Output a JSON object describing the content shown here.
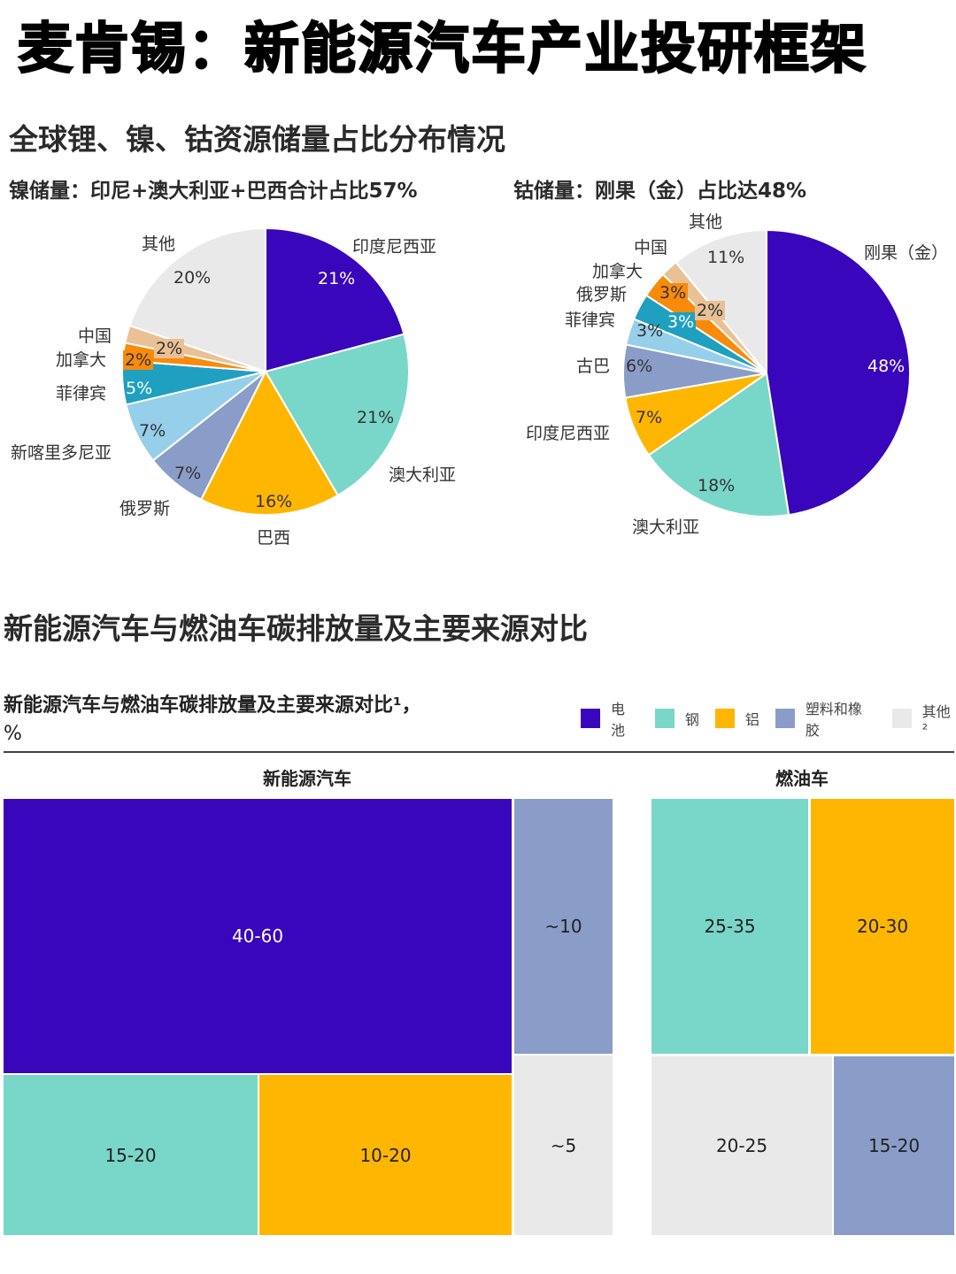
{
  "header": {
    "title": "麦肯锡：新能源汽车产业投研框架"
  },
  "section1": {
    "title": "全球锂、镍、钴资源储量占比分布情况",
    "nickel_subtitle": "镍储量：印尼+澳大利亚+巴西合计占比57%",
    "cobalt_subtitle": "钴储量：刚果（金）占比达48%"
  },
  "section2": {
    "title": "新能源汽车与燃油车碳排放量及主要来源对比",
    "chart_title_line1": "新能源汽车与燃油车碳排放量及主要来源对比¹，",
    "chart_title_line2": "%",
    "legend": [
      {
        "label": "电池",
        "color": "#3a06bb"
      },
      {
        "label": "钢",
        "color": "#79d7c9"
      },
      {
        "label": "铝",
        "color": "#ffb600"
      },
      {
        "label": "塑料和橡胶",
        "color": "#8a9dc8"
      },
      {
        "label": "其他²",
        "color": "#e9e9e9"
      }
    ],
    "ev_label": "新能源汽车",
    "ice_label": "燃油车"
  },
  "chart_data": [
    {
      "type": "pie",
      "title": "镍储量：印尼+澳大利亚+巴西合计占比57%",
      "unit": "%",
      "start": "12 o'clock, clockwise",
      "slices": [
        {
          "label": "印度尼西亚",
          "value": 21,
          "display": "21%",
          "color": "#3a06bb"
        },
        {
          "label": "澳大利亚",
          "value": 21,
          "display": "21%",
          "color": "#79d7c9"
        },
        {
          "label": "巴西",
          "value": 16,
          "display": "16%",
          "color": "#ffb600"
        },
        {
          "label": "俄罗斯",
          "value": 7,
          "display": "7%",
          "color": "#8a9dc8"
        },
        {
          "label": "新喀里多尼亚",
          "value": 7,
          "display": "7%",
          "color": "#96cfea"
        },
        {
          "label": "菲律宾",
          "value": 5,
          "display": "5%",
          "color": "#1fa0c0"
        },
        {
          "label": "加拿大",
          "value": 2,
          "display": "2%",
          "color": "#f98a0a"
        },
        {
          "label": "中国",
          "value": 2,
          "display": "2%",
          "color": "#e9c195"
        },
        {
          "label": "其他",
          "value": 20,
          "display": "20%",
          "color": "#e9e9e9"
        }
      ]
    },
    {
      "type": "pie",
      "title": "钴储量：刚果（金）占比达48%",
      "unit": "%",
      "start": "12 o'clock, clockwise",
      "slices": [
        {
          "label": "刚果（金）",
          "value": 48,
          "display": "48%",
          "color": "#3a06bb"
        },
        {
          "label": "澳大利亚",
          "value": 18,
          "display": "18%",
          "color": "#79d7c9"
        },
        {
          "label": "印度尼西亚",
          "value": 7,
          "display": "7%",
          "color": "#ffb600"
        },
        {
          "label": "古巴",
          "value": 6,
          "display": "6%",
          "color": "#8a9dc8"
        },
        {
          "label": "菲律宾",
          "value": 3,
          "display": "3%",
          "color": "#96cfea"
        },
        {
          "label": "俄罗斯",
          "value": 3,
          "display": "3%",
          "color": "#1fa0c0"
        },
        {
          "label": "加拿大",
          "value": 3,
          "display": "3%",
          "color": "#f98a0a"
        },
        {
          "label": "中国",
          "value": 2,
          "display": "2%",
          "color": "#e9c195"
        },
        {
          "label": "其他",
          "value": 11,
          "display": "11%",
          "color": "#e9e9e9"
        }
      ]
    },
    {
      "type": "treemap",
      "title": "新能源汽车与燃油车碳排放量及主要来源对比¹，%",
      "groups": [
        {
          "name": "新能源汽车",
          "items": [
            {
              "category": "电池",
              "value": "40-60"
            },
            {
              "category": "塑料和橡胶",
              "value": "~10"
            },
            {
              "category": "钢",
              "value": "15-20"
            },
            {
              "category": "铝",
              "value": "10-20"
            },
            {
              "category": "其他²",
              "value": "~5"
            }
          ]
        },
        {
          "name": "燃油车",
          "items": [
            {
              "category": "钢",
              "value": "25-35"
            },
            {
              "category": "铝",
              "value": "20-30"
            },
            {
              "category": "其他²",
              "value": "20-25"
            },
            {
              "category": "塑料和橡胶",
              "value": "15-20"
            }
          ]
        }
      ]
    }
  ]
}
